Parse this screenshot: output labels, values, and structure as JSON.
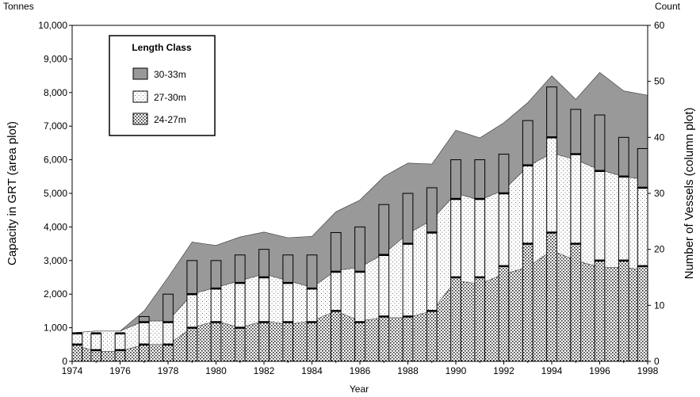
{
  "chart_data": {
    "type": "area",
    "title": "",
    "xlabel": "Year",
    "ylabel_left": "Capacity in GRT (area plot)",
    "ylabel_right": "Number of Vessels (column plot)",
    "unit_left": "Tonnes",
    "unit_right": "Count",
    "xlim": [
      1974,
      1998
    ],
    "ylim_left": [
      0,
      10000
    ],
    "ylim_right": [
      0,
      60
    ],
    "x_ticks": [
      "1974",
      "1976",
      "1978",
      "1980",
      "1982",
      "1984",
      "1986",
      "1988",
      "1990",
      "1992",
      "1994",
      "1996",
      "1998"
    ],
    "y_left_ticks": [
      "0",
      "1,000",
      "2,000",
      "3,000",
      "4,000",
      "5,000",
      "6,000",
      "7,000",
      "8,000",
      "9,000",
      "10,000"
    ],
    "y_right_ticks": [
      "0",
      "10",
      "20",
      "30",
      "40",
      "50",
      "60"
    ],
    "legend": {
      "title": "Length Class",
      "position": "top-left",
      "entries": [
        "30-33m",
        "27-30m",
        "24-27m"
      ]
    },
    "colors": {
      "30-33m": "#999999",
      "27-30m": "#f2f2f2",
      "24-27m": "#ffffff"
    },
    "years": [
      1974,
      1975,
      1976,
      1977,
      1978,
      1979,
      1980,
      1981,
      1982,
      1983,
      1984,
      1985,
      1986,
      1987,
      1988,
      1989,
      1990,
      1991,
      1992,
      1993,
      1994,
      1995,
      1996,
      1997,
      1998
    ],
    "area_series": [
      {
        "name": "24-27m",
        "values": [
          500,
          300,
          300,
          500,
          500,
          1000,
          1200,
          1000,
          1200,
          1100,
          1200,
          1500,
          1200,
          1300,
          1300,
          1500,
          2400,
          2300,
          2600,
          2800,
          3300,
          3000,
          2800,
          2800,
          2700
        ]
      },
      {
        "name": "27-30m",
        "values": [
          850,
          900,
          900,
          1200,
          1200,
          2000,
          2200,
          2400,
          2600,
          2400,
          2200,
          2700,
          2800,
          3200,
          3800,
          4200,
          5000,
          4800,
          5100,
          5800,
          6200,
          6000,
          5700,
          5500,
          5400
        ]
      },
      {
        "name": "30-33m",
        "values": [
          850,
          900,
          900,
          1500,
          2500,
          3550,
          3450,
          3700,
          3850,
          3680,
          3720,
          4450,
          4800,
          5500,
          5900,
          5870,
          6880,
          6650,
          7100,
          7700,
          8500,
          7800,
          8600,
          8050,
          7920
        ]
      }
    ],
    "column_series": [
      {
        "name": "24-27m",
        "values": [
          3,
          2,
          2,
          3,
          3,
          6,
          7,
          6,
          7,
          7,
          7,
          9,
          7,
          8,
          8,
          9,
          15,
          15,
          17,
          21,
          23,
          21,
          18,
          18,
          17
        ]
      },
      {
        "name": "27-30m",
        "values": [
          5,
          5,
          5,
          7,
          7,
          12,
          13,
          14,
          15,
          14,
          13,
          16,
          16,
          19,
          21,
          23,
          29,
          29,
          30,
          35,
          40,
          37,
          34,
          33,
          31
        ]
      },
      {
        "name": "30-33m",
        "values": [
          5,
          5,
          5,
          8,
          12,
          18,
          18,
          19,
          20,
          19,
          19,
          23,
          24,
          28,
          30,
          31,
          36,
          36,
          37,
          43,
          49,
          45,
          44,
          40,
          38
        ]
      }
    ]
  }
}
